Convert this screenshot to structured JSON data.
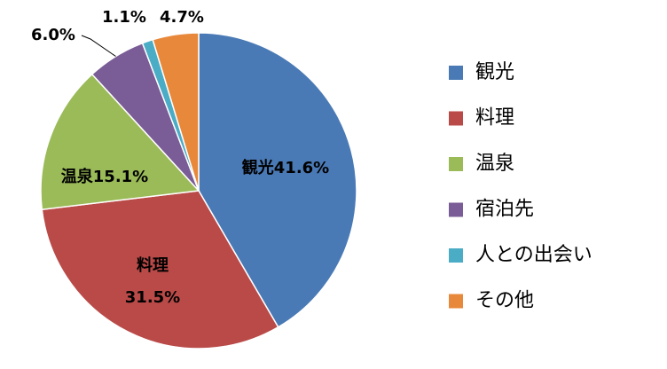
{
  "chart_data": {
    "type": "pie",
    "categories": [
      "観光",
      "料理",
      "温泉",
      "宿泊先",
      "人との出会い",
      "その他"
    ],
    "values": [
      41.6,
      31.5,
      15.1,
      6.0,
      1.1,
      4.7
    ],
    "value_labels": [
      "41.6%",
      "31.5%",
      "15.1%",
      "6.0%",
      "1.1%",
      "4.7%"
    ],
    "colors": [
      "#4a7ab5",
      "#b94a48",
      "#9bbb59",
      "#7a5c96",
      "#4bacc6",
      "#e8883a"
    ],
    "legend": "right"
  }
}
